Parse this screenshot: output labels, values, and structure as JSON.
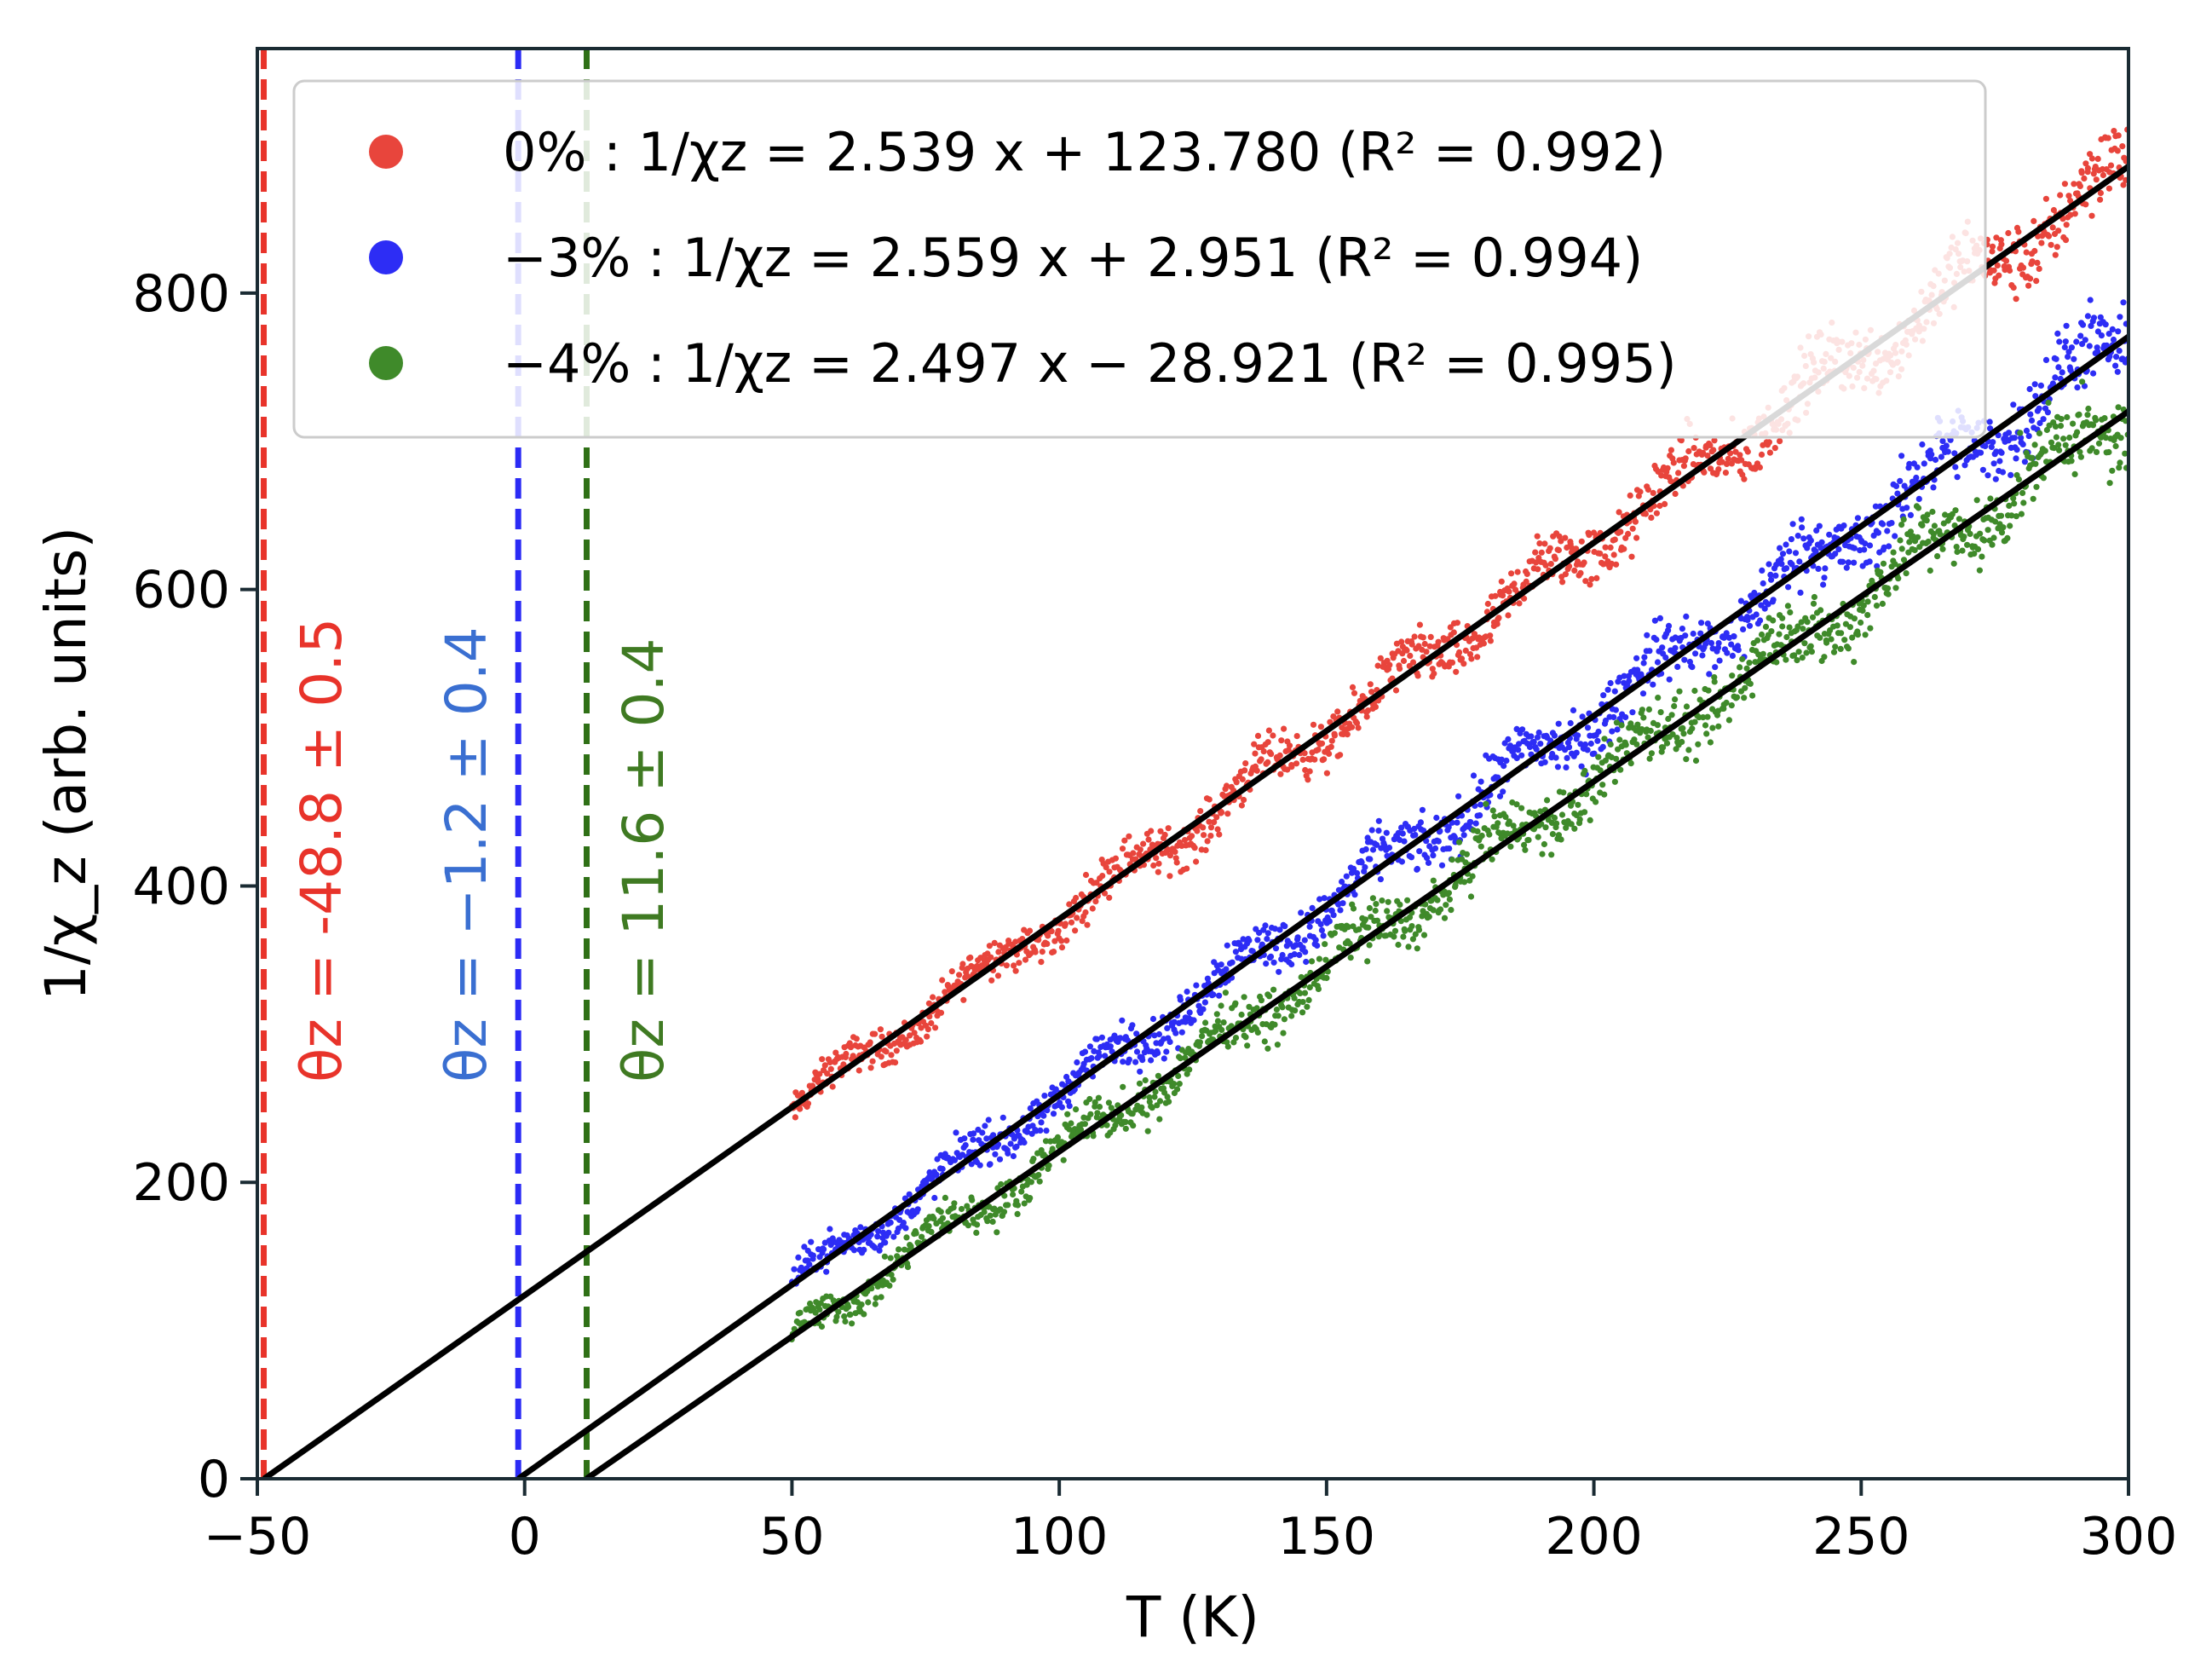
{
  "chart_data": {
    "type": "scatter",
    "xlabel": "T (K)",
    "ylabel": "1/χ_z (arb. units)",
    "xlim": [
      -50,
      300
    ],
    "ylim": [
      0,
      965
    ],
    "xticks": [
      -50,
      0,
      50,
      100,
      150,
      200,
      250,
      300
    ],
    "yticks": [
      0,
      200,
      400,
      600,
      800
    ],
    "xtick_labels": [
      "−50",
      "0",
      "50",
      "100",
      "150",
      "200",
      "250",
      "300"
    ],
    "ytick_labels": [
      "0",
      "200",
      "400",
      "600",
      "800"
    ],
    "grid": false,
    "legend_position": "top-right",
    "data_range_x": [
      50,
      300
    ],
    "series": [
      {
        "name": "0%",
        "legend_label": "0% : 1/χz = 2.539 x + 123.780 (R² = 0.992)",
        "color": "#e8453c",
        "slope": 2.539,
        "intercept": 123.78,
        "r2": 0.992,
        "theta_label": "θz = -48.8 ± 0.5",
        "theta": -48.8,
        "theta_color": "#e8332a",
        "line_color": "#e8332a"
      },
      {
        "name": "−3%",
        "legend_label": "−3% : 1/χz = 2.559 x + 2.951 (R² = 0.994)",
        "color": "#2d2df5",
        "slope": 2.559,
        "intercept": 2.951,
        "r2": 0.994,
        "theta_label": "θz = −1.2 ± 0.4",
        "theta": -1.2,
        "theta_color": "#3a6fd1",
        "line_color": "#2b2bf5"
      },
      {
        "name": "−4%",
        "legend_label": "−4% : 1/χz = 2.497 x − 28.921 (R² = 0.995)",
        "color": "#3f8a2a",
        "slope": 2.497,
        "intercept": -28.921,
        "r2": 0.995,
        "theta_label": "θz = 11.6 ± 0.4",
        "theta": 11.6,
        "theta_color": "#3f7a22",
        "line_color": "#2f7016"
      }
    ]
  }
}
